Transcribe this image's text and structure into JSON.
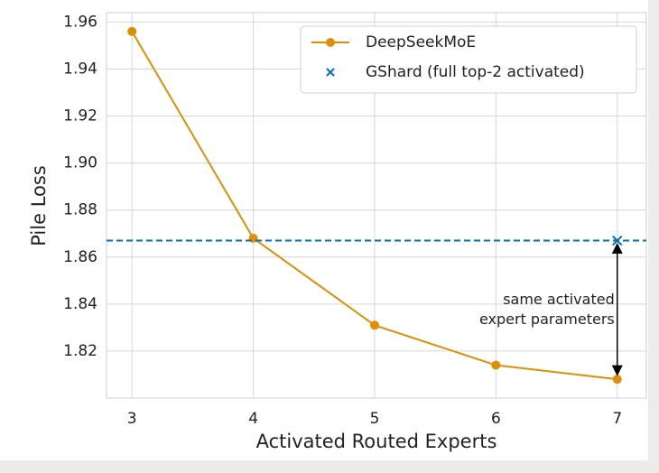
{
  "chart_data": {
    "type": "line",
    "x_label": "Activated Routed Experts",
    "y_label": "Pile Loss",
    "series": [
      {
        "name": "DeepSeekMoE",
        "color": "#de8f05",
        "marker": "circle",
        "x": [
          3,
          4,
          5,
          6,
          7
        ],
        "values": [
          1.956,
          1.868,
          1.831,
          1.814,
          1.808
        ]
      },
      {
        "name": "GShard (full top-2 activated)",
        "color": "#0173b2",
        "marker": "x",
        "x": [
          7
        ],
        "values": [
          1.867
        ],
        "reference_line": true
      }
    ],
    "annotation": [
      "same activated",
      "expert parameters"
    ],
    "xlim": [
      2.79,
      7.24
    ],
    "xticks": [
      3,
      4,
      5,
      6,
      7
    ],
    "ylim": [
      1.8,
      1.964
    ],
    "yticks": [
      1.82,
      1.84,
      1.86,
      1.88,
      {
        "value": 1.9,
        "label": "1.90"
      },
      1.92,
      1.94,
      1.96
    ],
    "grid": true,
    "legend": "upper right"
  }
}
